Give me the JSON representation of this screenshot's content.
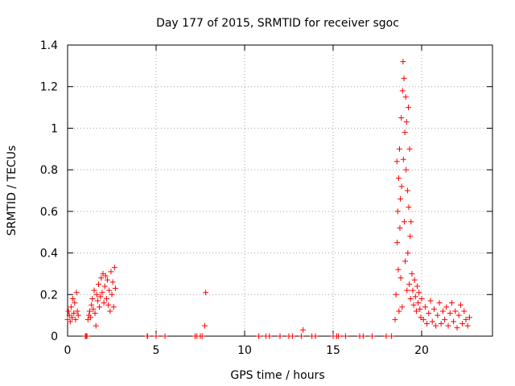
{
  "chart_data": {
    "type": "scatter",
    "title": "Day 177 of 2015, SRMTID for receiver sgoc",
    "xlabel": "GPS time / hours",
    "ylabel": "SRMTID / TECUs",
    "xlim": [
      0,
      24
    ],
    "ylim": [
      0,
      1.4
    ],
    "xticks": [
      0,
      5,
      10,
      15,
      20
    ],
    "xtick_labels": [
      "0",
      "5",
      "10",
      "15",
      "20"
    ],
    "yticks": [
      0,
      0.2,
      0.4,
      0.6,
      0.8,
      1.0,
      1.2,
      1.4
    ],
    "ytick_labels": [
      "0",
      "0.2",
      "0.4",
      "0.6",
      "0.8",
      "1",
      "1.2",
      "1.4"
    ],
    "grid": true,
    "marker": "+",
    "marker_color": "#ff0000",
    "series": [
      {
        "name": "SRMTID",
        "points": [
          [
            0.0,
            0.08
          ],
          [
            0.05,
            0.12
          ],
          [
            0.1,
            0.1
          ],
          [
            0.15,
            0.07
          ],
          [
            0.2,
            0.14
          ],
          [
            0.25,
            0.09
          ],
          [
            0.3,
            0.18
          ],
          [
            0.35,
            0.11
          ],
          [
            0.4,
            0.16
          ],
          [
            0.45,
            0.08
          ],
          [
            0.5,
            0.21
          ],
          [
            0.55,
            0.12
          ],
          [
            0.6,
            0.1
          ],
          [
            1.0,
            0.0
          ],
          [
            1.05,
            0.0
          ],
          [
            1.1,
            0.0
          ],
          [
            1.15,
            0.08
          ],
          [
            1.2,
            0.1
          ],
          [
            1.25,
            0.12
          ],
          [
            1.3,
            0.09
          ],
          [
            1.35,
            0.15
          ],
          [
            1.4,
            0.18
          ],
          [
            1.45,
            0.13
          ],
          [
            1.5,
            0.22
          ],
          [
            1.55,
            0.11
          ],
          [
            1.6,
            0.05
          ],
          [
            1.65,
            0.2
          ],
          [
            1.7,
            0.17
          ],
          [
            1.75,
            0.25
          ],
          [
            1.8,
            0.14
          ],
          [
            1.85,
            0.19
          ],
          [
            1.9,
            0.28
          ],
          [
            1.95,
            0.21
          ],
          [
            2.0,
            0.3
          ],
          [
            2.05,
            0.16
          ],
          [
            2.1,
            0.24
          ],
          [
            2.15,
            0.29
          ],
          [
            2.2,
            0.18
          ],
          [
            2.25,
            0.27
          ],
          [
            2.3,
            0.15
          ],
          [
            2.35,
            0.22
          ],
          [
            2.4,
            0.12
          ],
          [
            2.45,
            0.31
          ],
          [
            2.5,
            0.2
          ],
          [
            2.55,
            0.26
          ],
          [
            2.6,
            0.14
          ],
          [
            2.65,
            0.33
          ],
          [
            2.7,
            0.23
          ],
          [
            4.5,
            0.0
          ],
          [
            4.52,
            0.0
          ],
          [
            5.0,
            0.0
          ],
          [
            5.5,
            0.0
          ],
          [
            7.2,
            0.0
          ],
          [
            7.3,
            0.0
          ],
          [
            7.5,
            0.0
          ],
          [
            7.6,
            0.0
          ],
          [
            7.75,
            0.05
          ],
          [
            7.8,
            0.21
          ],
          [
            10.8,
            0.0
          ],
          [
            11.2,
            0.0
          ],
          [
            11.4,
            0.0
          ],
          [
            12.0,
            0.0
          ],
          [
            12.5,
            0.0
          ],
          [
            12.7,
            0.0
          ],
          [
            13.2,
            0.0
          ],
          [
            13.3,
            0.03
          ],
          [
            13.8,
            0.0
          ],
          [
            14.0,
            0.0
          ],
          [
            15.0,
            0.0
          ],
          [
            15.2,
            0.0
          ],
          [
            15.3,
            0.0
          ],
          [
            15.7,
            0.0
          ],
          [
            16.5,
            0.0
          ],
          [
            16.7,
            0.0
          ],
          [
            17.2,
            0.0
          ],
          [
            18.0,
            0.0
          ],
          [
            18.3,
            0.0
          ],
          [
            18.5,
            0.08
          ],
          [
            18.55,
            0.2
          ],
          [
            18.6,
            0.84
          ],
          [
            18.62,
            0.45
          ],
          [
            18.65,
            0.6
          ],
          [
            18.68,
            0.32
          ],
          [
            18.7,
            0.76
          ],
          [
            18.72,
            0.12
          ],
          [
            18.75,
            0.9
          ],
          [
            18.77,
            0.52
          ],
          [
            18.8,
            0.66
          ],
          [
            18.82,
            0.28
          ],
          [
            18.85,
            1.05
          ],
          [
            18.87,
            0.72
          ],
          [
            18.9,
            0.14
          ],
          [
            18.92,
            1.18
          ],
          [
            18.95,
            1.32
          ],
          [
            18.97,
            0.85
          ],
          [
            19.0,
            1.24
          ],
          [
            19.02,
            0.55
          ],
          [
            19.05,
            0.98
          ],
          [
            19.07,
            0.36
          ],
          [
            19.1,
            1.15
          ],
          [
            19.12,
            0.8
          ],
          [
            19.15,
            1.03
          ],
          [
            19.17,
            0.22
          ],
          [
            19.2,
            0.7
          ],
          [
            19.22,
            0.4
          ],
          [
            19.25,
            1.1
          ],
          [
            19.27,
            0.62
          ],
          [
            19.3,
            0.25
          ],
          [
            19.32,
            0.9
          ],
          [
            19.35,
            0.48
          ],
          [
            19.37,
            0.18
          ],
          [
            19.4,
            0.55
          ],
          [
            19.45,
            0.3
          ],
          [
            19.5,
            0.22
          ],
          [
            19.55,
            0.15
          ],
          [
            19.6,
            0.27
          ],
          [
            19.65,
            0.19
          ],
          [
            19.7,
            0.12
          ],
          [
            19.75,
            0.24
          ],
          [
            19.8,
            0.16
          ],
          [
            19.85,
            0.21
          ],
          [
            19.9,
            0.13
          ],
          [
            19.95,
            0.09
          ],
          [
            20.0,
            0.18
          ],
          [
            20.1,
            0.08
          ],
          [
            20.2,
            0.14
          ],
          [
            20.3,
            0.06
          ],
          [
            20.4,
            0.11
          ],
          [
            20.5,
            0.17
          ],
          [
            20.6,
            0.07
          ],
          [
            20.7,
            0.13
          ],
          [
            20.8,
            0.05
          ],
          [
            20.9,
            0.1
          ],
          [
            21.0,
            0.16
          ],
          [
            21.1,
            0.06
          ],
          [
            21.2,
            0.12
          ],
          [
            21.3,
            0.08
          ],
          [
            21.4,
            0.14
          ],
          [
            21.5,
            0.05
          ],
          [
            21.6,
            0.11
          ],
          [
            21.7,
            0.16
          ],
          [
            21.8,
            0.07
          ],
          [
            21.9,
            0.12
          ],
          [
            22.0,
            0.04
          ],
          [
            22.1,
            0.1
          ],
          [
            22.2,
            0.15
          ],
          [
            22.3,
            0.06
          ],
          [
            22.4,
            0.12
          ],
          [
            22.5,
            0.08
          ],
          [
            22.6,
            0.05
          ],
          [
            22.7,
            0.09
          ]
        ]
      }
    ]
  }
}
